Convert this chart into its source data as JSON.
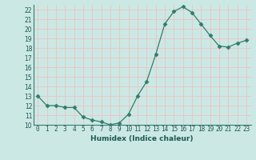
{
  "x": [
    0,
    1,
    2,
    3,
    4,
    5,
    6,
    7,
    8,
    9,
    10,
    11,
    12,
    13,
    14,
    15,
    16,
    17,
    18,
    19,
    20,
    21,
    22,
    23
  ],
  "y": [
    13,
    12,
    12,
    11.8,
    11.8,
    10.8,
    10.5,
    10.3,
    10,
    10.2,
    11.1,
    13,
    14.5,
    17.3,
    20.5,
    21.8,
    22.3,
    21.7,
    20.5,
    19.3,
    18.2,
    18.1,
    18.5,
    18.8
  ],
  "line_color": "#2e7d6b",
  "marker": "D",
  "marker_size": 2.5,
  "xlabel": "Humidex (Indice chaleur)",
  "ylim": [
    10,
    22.5
  ],
  "xlim": [
    -0.5,
    23.5
  ],
  "yticks": [
    10,
    11,
    12,
    13,
    14,
    15,
    16,
    17,
    18,
    19,
    20,
    21,
    22
  ],
  "xticks": [
    0,
    1,
    2,
    3,
    4,
    5,
    6,
    7,
    8,
    9,
    10,
    11,
    12,
    13,
    14,
    15,
    16,
    17,
    18,
    19,
    20,
    21,
    22,
    23
  ],
  "bg_color": "#cce8e4",
  "grid_color": "#e8c8c8",
  "tick_fontsize": 5.5
}
